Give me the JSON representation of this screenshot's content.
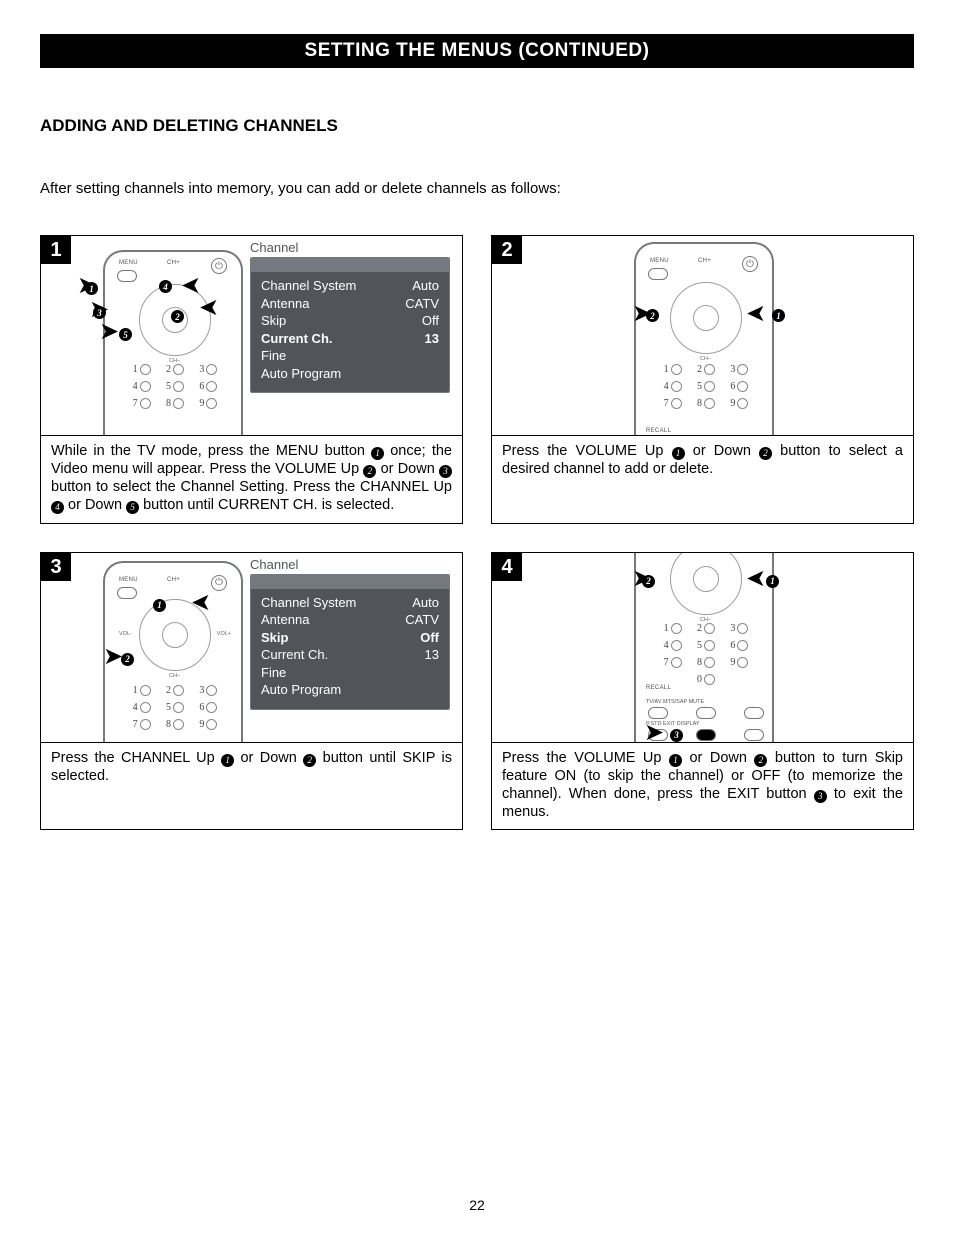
{
  "colors": {
    "black": "#000000",
    "white": "#ffffff",
    "osd_bg": "#515459",
    "osd_bar": "#747881",
    "remote_border": "#747881"
  },
  "page": {
    "title_bar": "SETTING THE MENUS (CONTINUED)",
    "section_heading": "ADDING AND DELETING CHANNELS",
    "intro": "After setting channels into memory, you can add or delete channels as follows:",
    "number": "22"
  },
  "osd": {
    "title": "Channel",
    "rows": [
      {
        "label": "Channel System",
        "value": "Auto"
      },
      {
        "label": "Antenna",
        "value": "CATV"
      },
      {
        "label": "Skip",
        "value": "Off"
      },
      {
        "label": "Current Ch.",
        "value": "13"
      },
      {
        "label": "Fine",
        "value": ""
      },
      {
        "label": "Auto Program",
        "value": ""
      }
    ]
  },
  "steps": {
    "s1": {
      "num": "1",
      "caption_parts": [
        "While in the TV mode, press the MENU button ",
        "1",
        " once; the Video menu will appear. Press the VOLUME Up ",
        "2",
        " or Down ",
        "3",
        " button to select the Channel Setting.   Press the CHANNEL Up ",
        "4",
        " or Down ",
        "5",
        " button until CURRENT CH. is selected."
      ],
      "highlight_index": 3,
      "callouts": [
        "1",
        "2",
        "3",
        "4",
        "5"
      ]
    },
    "s2": {
      "num": "2",
      "caption_parts": [
        "Press the VOLUME Up ",
        "1",
        " or Down ",
        "2",
        " button to select a desired channel to add or delete."
      ],
      "callouts": [
        "1",
        "2"
      ]
    },
    "s3": {
      "num": "3",
      "caption_parts": [
        "Press the CHANNEL Up ",
        "1",
        " or Down ",
        "2",
        " button until SKIP is selected."
      ],
      "highlight_index": 2,
      "callouts": [
        "1",
        "2"
      ]
    },
    "s4": {
      "num": "4",
      "caption_parts": [
        "Press the VOLUME Up ",
        "1",
        " or Down ",
        "2",
        " button to turn Skip feature ON (to skip the channel) or OFF (to memorize the channel).  When done, press the EXIT button ",
        "3",
        " to exit the menus."
      ],
      "callouts": [
        "1",
        "2",
        "3"
      ]
    }
  },
  "remote": {
    "top_labels": {
      "menu": "MENU",
      "ch_up": "CH+",
      "ch_dn": "CH–",
      "vol_l": "VOL-",
      "vol_r": "VOL+",
      "recall": "RECALL"
    },
    "row_labels": {
      "a": "TV/AV MTS/SAP MUTE",
      "b": "P.STD   EXIT   DISPLAY"
    },
    "keypad": [
      "1",
      "2",
      "3",
      "4",
      "5",
      "6",
      "7",
      "8",
      "9",
      "",
      "0",
      ""
    ]
  }
}
